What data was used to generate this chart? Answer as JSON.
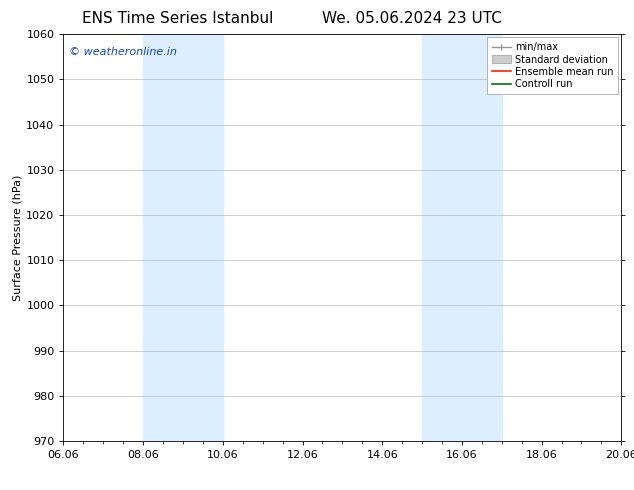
{
  "title1": "ENS Time Series Istanbul",
  "title2": "We. 05.06.2024 23 UTC",
  "ylabel": "Surface Pressure (hPa)",
  "xlim": [
    6.06,
    20.06
  ],
  "ylim": [
    970,
    1060
  ],
  "yticks": [
    970,
    980,
    990,
    1000,
    1010,
    1020,
    1030,
    1040,
    1050,
    1060
  ],
  "xticks": [
    6.06,
    8.06,
    10.06,
    12.06,
    14.06,
    16.06,
    18.06,
    20.06
  ],
  "xticklabels": [
    "06.06",
    "08.06",
    "10.06",
    "12.06",
    "14.06",
    "16.06",
    "18.06",
    "20.06"
  ],
  "shaded_regions": [
    {
      "xmin": 8.06,
      "xmax": 10.06
    },
    {
      "xmin": 15.06,
      "xmax": 17.06
    }
  ],
  "shade_color": "#ddeeff",
  "watermark": "© weatheronline.in",
  "watermark_color": "#1144cc",
  "legend_labels": [
    "min/max",
    "Standard deviation",
    "Ensemble mean run",
    "Controll run"
  ],
  "legend_colors": [
    "#aaaaaa",
    "#cccccc",
    "#ff0000",
    "#00bb00"
  ],
  "background_color": "#ffffff",
  "title_fontsize": 11,
  "ylabel_fontsize": 8,
  "tick_fontsize": 8,
  "watermark_fontsize": 8,
  "legend_fontsize": 7
}
